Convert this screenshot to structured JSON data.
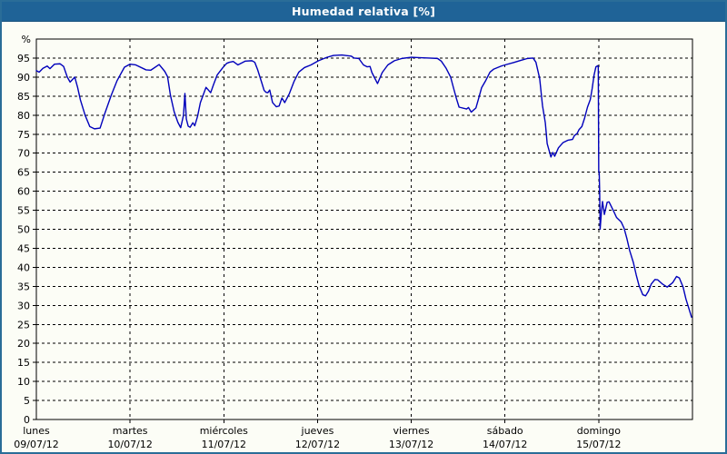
{
  "window": {
    "title": "Humedad relativa [%]"
  },
  "colors": {
    "titlebar_bg": "#1f6397",
    "titlebar_text": "#ffffff",
    "window_border": "#2a6d98",
    "page_bg": "#fcfdf6",
    "line": "#0000bb",
    "grid": "#000000",
    "axis": "#000000"
  },
  "chart_data": {
    "type": "line",
    "title": "Humedad relativa [%]",
    "ylabel": "%",
    "y_unit_label": "%",
    "ylim": [
      0,
      100
    ],
    "y_ticks": [
      0,
      5,
      10,
      15,
      20,
      25,
      30,
      35,
      40,
      45,
      50,
      55,
      60,
      65,
      70,
      75,
      80,
      85,
      90,
      95
    ],
    "xlim_days": [
      0,
      7
    ],
    "grid": "dashed",
    "legend": "none",
    "x_days": [
      {
        "name": "lunes",
        "date": "09/07/12"
      },
      {
        "name": "martes",
        "date": "10/07/12"
      },
      {
        "name": "miércoles",
        "date": "11/07/12"
      },
      {
        "name": "jueves",
        "date": "12/07/12"
      },
      {
        "name": "viernes",
        "date": "13/07/12"
      },
      {
        "name": "sábado",
        "date": "14/07/12"
      },
      {
        "name": "domingo",
        "date": "15/07/12"
      }
    ],
    "series": [
      {
        "name": "Humedad relativa",
        "color": "#0000bb",
        "points": [
          [
            0,
            91.7
          ],
          [
            0.03,
            91.3
          ],
          [
            0.07,
            92.3
          ],
          [
            0.116,
            92.9
          ],
          [
            0.145,
            92.2
          ],
          [
            0.194,
            93.4
          ],
          [
            0.252,
            93.5
          ],
          [
            0.291,
            92.8
          ],
          [
            0.33,
            90.0
          ],
          [
            0.36,
            88.7
          ],
          [
            0.41,
            90.0
          ],
          [
            0.44,
            87.3
          ],
          [
            0.47,
            84.0
          ],
          [
            0.52,
            80.0
          ],
          [
            0.57,
            77.0
          ],
          [
            0.62,
            76.4
          ],
          [
            0.68,
            76.6
          ],
          [
            0.73,
            80.4
          ],
          [
            0.8,
            85.3
          ],
          [
            0.86,
            89.0
          ],
          [
            0.94,
            92.6
          ],
          [
            1.0,
            93.4
          ],
          [
            1.06,
            93.2
          ],
          [
            1.17,
            91.9
          ],
          [
            1.22,
            91.8
          ],
          [
            1.31,
            93.3
          ],
          [
            1.37,
            91.5
          ],
          [
            1.4,
            90.1
          ],
          [
            1.43,
            85.3
          ],
          [
            1.47,
            80.9
          ],
          [
            1.51,
            78.1
          ],
          [
            1.54,
            76.7
          ],
          [
            1.57,
            80.0
          ],
          [
            1.585,
            85.7
          ],
          [
            1.6,
            79.0
          ],
          [
            1.62,
            77.1
          ],
          [
            1.64,
            76.8
          ],
          [
            1.67,
            78.0
          ],
          [
            1.69,
            77.2
          ],
          [
            1.72,
            79.7
          ],
          [
            1.75,
            83.3
          ],
          [
            1.78,
            85.3
          ],
          [
            1.81,
            87.3
          ],
          [
            1.86,
            85.9
          ],
          [
            1.89,
            88.0
          ],
          [
            1.93,
            90.6
          ],
          [
            1.99,
            92.5
          ],
          [
            2.03,
            93.6
          ],
          [
            2.06,
            93.9
          ],
          [
            2.1,
            94.1
          ],
          [
            2.15,
            93.2
          ],
          [
            2.23,
            94.2
          ],
          [
            2.3,
            94.3
          ],
          [
            2.33,
            93.9
          ],
          [
            2.36,
            92.0
          ],
          [
            2.4,
            88.9
          ],
          [
            2.43,
            86.5
          ],
          [
            2.45,
            86.0
          ],
          [
            2.47,
            85.9
          ],
          [
            2.49,
            86.6
          ],
          [
            2.52,
            83.3
          ],
          [
            2.56,
            82.2
          ],
          [
            2.59,
            82.4
          ],
          [
            2.62,
            84.5
          ],
          [
            2.65,
            83.3
          ],
          [
            2.7,
            85.7
          ],
          [
            2.75,
            88.9
          ],
          [
            2.8,
            91.3
          ],
          [
            2.86,
            92.5
          ],
          [
            2.93,
            93.2
          ],
          [
            3.01,
            94.3
          ],
          [
            3.1,
            95.2
          ],
          [
            3.17,
            95.7
          ],
          [
            3.26,
            95.8
          ],
          [
            3.36,
            95.5
          ],
          [
            3.39,
            95.0
          ],
          [
            3.44,
            94.9
          ],
          [
            3.49,
            93.2
          ],
          [
            3.53,
            92.7
          ],
          [
            3.56,
            92.8
          ],
          [
            3.58,
            91.2
          ],
          [
            3.64,
            88.3
          ],
          [
            3.69,
            91.2
          ],
          [
            3.75,
            93.2
          ],
          [
            3.82,
            94.3
          ],
          [
            3.9,
            94.9
          ],
          [
            4.0,
            95.2
          ],
          [
            4.1,
            95.1
          ],
          [
            4.19,
            95.0
          ],
          [
            4.28,
            94.9
          ],
          [
            4.32,
            94.2
          ],
          [
            4.37,
            92.4
          ],
          [
            4.42,
            90.0
          ],
          [
            4.45,
            87.2
          ],
          [
            4.48,
            84.5
          ],
          [
            4.51,
            82.1
          ],
          [
            4.56,
            81.8
          ],
          [
            4.59,
            81.6
          ],
          [
            4.61,
            82.0
          ],
          [
            4.64,
            80.8
          ],
          [
            4.69,
            81.9
          ],
          [
            4.72,
            84.5
          ],
          [
            4.75,
            87.2
          ],
          [
            4.79,
            88.9
          ],
          [
            4.84,
            91.3
          ],
          [
            4.88,
            92.1
          ],
          [
            4.96,
            92.9
          ],
          [
            5.0,
            93.2
          ],
          [
            5.09,
            93.8
          ],
          [
            5.17,
            94.4
          ],
          [
            5.24,
            94.9
          ],
          [
            5.3,
            95.0
          ],
          [
            5.33,
            93.9
          ],
          [
            5.37,
            89.6
          ],
          [
            5.4,
            82.5
          ],
          [
            5.43,
            78.0
          ],
          [
            5.45,
            72.5
          ],
          [
            5.49,
            69.0
          ],
          [
            5.51,
            70.2
          ],
          [
            5.53,
            69.2
          ],
          [
            5.57,
            71.4
          ],
          [
            5.62,
            72.8
          ],
          [
            5.67,
            73.4
          ],
          [
            5.72,
            73.6
          ],
          [
            5.74,
            74.6
          ],
          [
            5.77,
            75.2
          ],
          [
            5.79,
            76.2
          ],
          [
            5.82,
            77.0
          ],
          [
            5.85,
            79.3
          ],
          [
            5.88,
            82.1
          ],
          [
            5.91,
            84.1
          ],
          [
            5.93,
            87.0
          ],
          [
            5.95,
            90.5
          ],
          [
            5.97,
            92.7
          ],
          [
            5.99,
            93.0
          ],
          [
            5.995,
            92.6
          ],
          [
            6.0,
            65.3
          ],
          [
            6.005,
            65.0
          ],
          [
            6.01,
            59.6
          ],
          [
            6.015,
            50.0
          ],
          [
            6.03,
            55.0
          ],
          [
            6.04,
            57.3
          ],
          [
            6.06,
            53.9
          ],
          [
            6.09,
            57.1
          ],
          [
            6.11,
            57.2
          ],
          [
            6.16,
            54.7
          ],
          [
            6.19,
            53.1
          ],
          [
            6.24,
            51.9
          ],
          [
            6.27,
            50.3
          ],
          [
            6.3,
            47.6
          ],
          [
            6.33,
            44.4
          ],
          [
            6.37,
            41.2
          ],
          [
            6.4,
            38.0
          ],
          [
            6.43,
            35.2
          ],
          [
            6.47,
            32.8
          ],
          [
            6.5,
            32.5
          ],
          [
            6.53,
            33.7
          ],
          [
            6.56,
            35.6
          ],
          [
            6.6,
            36.8
          ],
          [
            6.63,
            36.7
          ],
          [
            6.68,
            35.6
          ],
          [
            6.73,
            34.8
          ],
          [
            6.79,
            36.0
          ],
          [
            6.83,
            37.6
          ],
          [
            6.86,
            37.2
          ],
          [
            6.9,
            34.8
          ],
          [
            6.93,
            31.7
          ],
          [
            6.96,
            29.3
          ],
          [
            6.99,
            26.9
          ]
        ]
      }
    ]
  }
}
